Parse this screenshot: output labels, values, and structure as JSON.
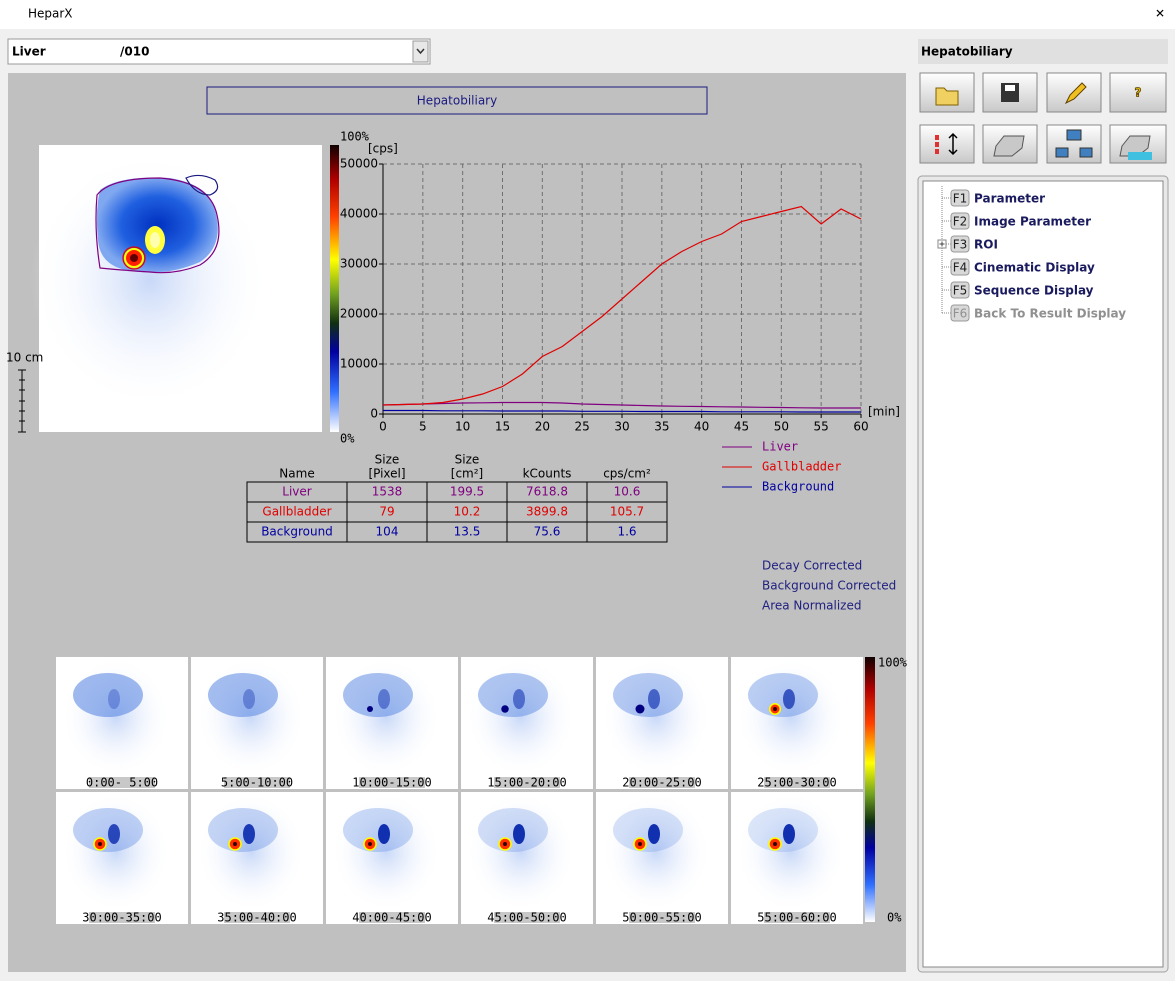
{
  "window": {
    "title": "HeparX"
  },
  "selector": {
    "organ": "Liver",
    "study": "/010"
  },
  "panel": {
    "title": "Hepatobiliary",
    "scale_label": "10 cm",
    "colorbar_max": "100%",
    "colorbar_min": "0%"
  },
  "chart_data": {
    "type": "line",
    "y_label": "[cps]",
    "x_label": "[min]",
    "x": [
      0,
      2.5,
      5,
      7.5,
      10,
      12.5,
      15,
      17.5,
      20,
      22.5,
      25,
      27.5,
      30,
      32.5,
      35,
      37.5,
      40,
      42.5,
      45,
      47.5,
      50,
      52.5,
      55,
      57.5,
      60
    ],
    "series": [
      {
        "name": "Liver",
        "color": "#800080",
        "values": [
          1800,
          1900,
          2000,
          2100,
          2200,
          2250,
          2300,
          2300,
          2300,
          2200,
          2000,
          1900,
          1800,
          1700,
          1600,
          1550,
          1500,
          1450,
          1400,
          1350,
          1300,
          1250,
          1200,
          1200,
          1200
        ]
      },
      {
        "name": "Gallbladder",
        "color": "#e00000",
        "values": [
          1800,
          1900,
          2000,
          2300,
          3000,
          4000,
          5500,
          8000,
          11500,
          13500,
          16500,
          19500,
          23000,
          26500,
          30000,
          32500,
          34500,
          36000,
          38500,
          39500,
          40500,
          41500,
          38000,
          41000,
          39000
        ]
      },
      {
        "name": "Background",
        "color": "#0000a0",
        "values": [
          700,
          700,
          700,
          650,
          650,
          650,
          600,
          600,
          600,
          600,
          550,
          550,
          550,
          500,
          500,
          500,
          500,
          450,
          450,
          450,
          450,
          400,
          400,
          400,
          400
        ]
      }
    ],
    "xlim": [
      0,
      60
    ],
    "ylim": [
      0,
      50000
    ],
    "xticks": [
      0,
      5,
      10,
      15,
      20,
      25,
      30,
      35,
      40,
      45,
      50,
      55,
      60
    ],
    "yticks": [
      0,
      10000,
      20000,
      30000,
      40000,
      50000
    ],
    "grid": true
  },
  "table": {
    "headers": [
      [
        "Name"
      ],
      [
        "Size",
        "[Pixel]"
      ],
      [
        "Size",
        "[cm²]"
      ],
      [
        "kCounts"
      ],
      [
        "cps/cm²"
      ]
    ],
    "rows": [
      [
        "Liver",
        1538,
        199.5,
        7618.8,
        10.6
      ],
      [
        "Gallbladder",
        79,
        10.2,
        3899.8,
        105.7
      ],
      [
        "Background",
        104,
        13.5,
        75.6,
        1.6
      ]
    ]
  },
  "notes": [
    "Decay Corrected",
    "Background Corrected",
    "Area Normalized"
  ],
  "sequence": {
    "frames": [
      "0:00- 5:00",
      "5:00-10:00",
      "10:00-15:00",
      "15:00-20:00",
      "20:00-25:00",
      "25:00-30:00",
      "30:00-35:00",
      "35:00-40:00",
      "40:00-45:00",
      "45:00-50:00",
      "50:00-55:00",
      "55:00-60:00"
    ],
    "colorbar_max": "100%",
    "colorbar_min": "0%"
  },
  "sidebar": {
    "title": "Hepatobiliary",
    "tree": [
      {
        "key": "F1",
        "label": "Parameter",
        "enabled": true,
        "expandable": false
      },
      {
        "key": "F2",
        "label": "Image Parameter",
        "enabled": true,
        "expandable": false
      },
      {
        "key": "F3",
        "label": "ROI",
        "enabled": true,
        "expandable": true
      },
      {
        "key": "F4",
        "label": "Cinematic Display",
        "enabled": true,
        "expandable": false
      },
      {
        "key": "F5",
        "label": "Sequence Display",
        "enabled": true,
        "expandable": false
      },
      {
        "key": "F6",
        "label": "Back To Result Display",
        "enabled": false,
        "expandable": false
      }
    ]
  }
}
